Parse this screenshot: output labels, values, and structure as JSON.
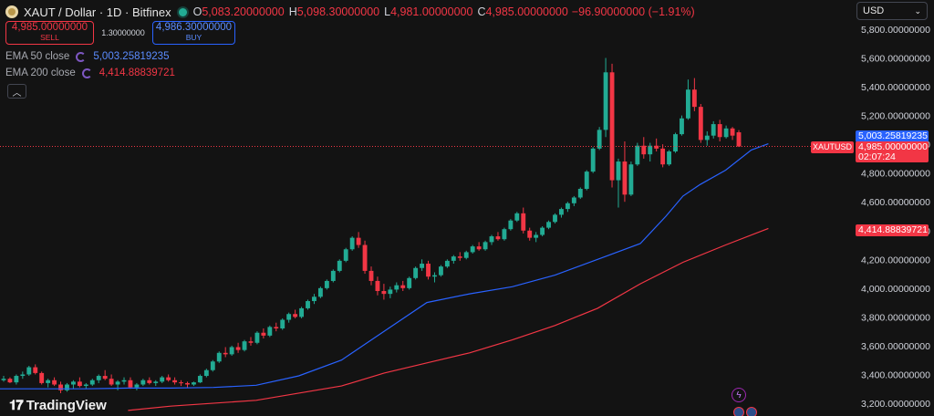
{
  "header": {
    "symbol_title": "XAUT / Dollar · 1D · Bitfinex",
    "ohlc": [
      {
        "k": "O",
        "v": "5,083.20000000"
      },
      {
        "k": "H",
        "v": "5,098.30000000"
      },
      {
        "k": "L",
        "v": "4,981.00000000"
      },
      {
        "k": "C",
        "v": "4,985.00000000"
      }
    ],
    "change": "−96.90000000 (−1.91%)"
  },
  "trade": {
    "sell_price": "4,985.00000000",
    "sell_label": "SELL",
    "spread": "1.30000000",
    "buy_price": "4,986.30000000",
    "buy_label": "BUY"
  },
  "indicators": {
    "ema50": {
      "name": "EMA 50 close",
      "value": "5,003.25819235",
      "color": "#2962ff"
    },
    "ema200": {
      "name": "EMA 200 close",
      "value": "4,414.88839721",
      "color": "#f23645"
    }
  },
  "currency": "USD",
  "price_tags": {
    "ema50": "5,003.25819235",
    "last": "4,985.00000000",
    "countdown": "02:07:24",
    "ema200": "4,414.88839721",
    "symbol": "XAUTUSD"
  },
  "branding": {
    "name": "TradingView"
  },
  "icons": {
    "bolt": "lightning-icon",
    "flags": "us-flag-icon"
  },
  "chart_data": {
    "type": "candlestick",
    "y_axis": {
      "ticks": [
        "3,200.00000000",
        "3,400.00000000",
        "3,600.00000000",
        "3,800.00000000",
        "4,000.00000000",
        "4,200.00000000",
        "4,400.00000000",
        "4,600.00000000",
        "4,800.00000000",
        "5,000.00000000",
        "5,200.00000000",
        "5,400.00000000",
        "5,600.00000000",
        "5,800.00000000"
      ],
      "ylim": [
        3150,
        5900
      ]
    },
    "grid": false,
    "last_price": 4985,
    "colors": {
      "up": "#22ab94",
      "down": "#f23645",
      "ema50": "#2962ff",
      "ema200": "#f23645"
    },
    "series": [
      {
        "name": "EMA 50 close",
        "values": [
          [
            0,
            3300
          ],
          [
            0.05,
            3300
          ],
          [
            0.1,
            3300
          ],
          [
            0.15,
            3305
          ],
          [
            0.2,
            3305
          ],
          [
            0.25,
            3310
          ],
          [
            0.3,
            3325
          ],
          [
            0.35,
            3390
          ],
          [
            0.4,
            3500
          ],
          [
            0.45,
            3700
          ],
          [
            0.5,
            3900
          ],
          [
            0.55,
            3960
          ],
          [
            0.6,
            4010
          ],
          [
            0.65,
            4090
          ],
          [
            0.7,
            4200
          ],
          [
            0.75,
            4310
          ],
          [
            0.78,
            4500
          ],
          [
            0.8,
            4640
          ],
          [
            0.82,
            4720
          ],
          [
            0.85,
            4820
          ],
          [
            0.88,
            4960
          ],
          [
            0.9,
            5003.26
          ]
        ]
      },
      {
        "name": "EMA 200 close",
        "values": [
          [
            0.15,
            3150
          ],
          [
            0.2,
            3180
          ],
          [
            0.3,
            3220
          ],
          [
            0.4,
            3320
          ],
          [
            0.45,
            3410
          ],
          [
            0.5,
            3480
          ],
          [
            0.55,
            3550
          ],
          [
            0.6,
            3640
          ],
          [
            0.65,
            3740
          ],
          [
            0.7,
            3860
          ],
          [
            0.75,
            4030
          ],
          [
            0.8,
            4180
          ],
          [
            0.85,
            4300
          ],
          [
            0.9,
            4414.89
          ]
        ]
      }
    ],
    "candles": [
      [
        3360,
        3390,
        3350,
        3370
      ],
      [
        3370,
        3380,
        3340,
        3345
      ],
      [
        3345,
        3400,
        3330,
        3390
      ],
      [
        3390,
        3420,
        3370,
        3400
      ],
      [
        3400,
        3460,
        3390,
        3450
      ],
      [
        3450,
        3470,
        3400,
        3410
      ],
      [
        3410,
        3420,
        3330,
        3340
      ],
      [
        3340,
        3370,
        3310,
        3360
      ],
      [
        3360,
        3380,
        3320,
        3330
      ],
      [
        3330,
        3350,
        3270,
        3290
      ],
      [
        3290,
        3340,
        3280,
        3330
      ],
      [
        3330,
        3360,
        3300,
        3350
      ],
      [
        3350,
        3380,
        3310,
        3320
      ],
      [
        3320,
        3340,
        3300,
        3330
      ],
      [
        3330,
        3370,
        3320,
        3360
      ],
      [
        3360,
        3400,
        3340,
        3390
      ],
      [
        3390,
        3430,
        3360,
        3370
      ],
      [
        3370,
        3400,
        3320,
        3330
      ],
      [
        3330,
        3360,
        3290,
        3350
      ],
      [
        3350,
        3380,
        3330,
        3360
      ],
      [
        3360,
        3380,
        3300,
        3310
      ],
      [
        3310,
        3340,
        3290,
        3330
      ],
      [
        3330,
        3370,
        3320,
        3360
      ],
      [
        3360,
        3380,
        3330,
        3340
      ],
      [
        3340,
        3360,
        3320,
        3350
      ],
      [
        3350,
        3390,
        3340,
        3380
      ],
      [
        3380,
        3400,
        3350,
        3360
      ],
      [
        3360,
        3380,
        3330,
        3345
      ],
      [
        3345,
        3360,
        3320,
        3340
      ],
      [
        3340,
        3350,
        3310,
        3330
      ],
      [
        3330,
        3350,
        3320,
        3345
      ],
      [
        3345,
        3400,
        3340,
        3390
      ],
      [
        3390,
        3440,
        3380,
        3430
      ],
      [
        3430,
        3500,
        3420,
        3490
      ],
      [
        3490,
        3560,
        3480,
        3550
      ],
      [
        3550,
        3590,
        3520,
        3540
      ],
      [
        3540,
        3600,
        3530,
        3590
      ],
      [
        3590,
        3620,
        3550,
        3570
      ],
      [
        3570,
        3640,
        3560,
        3630
      ],
      [
        3630,
        3660,
        3600,
        3620
      ],
      [
        3620,
        3700,
        3610,
        3690
      ],
      [
        3690,
        3720,
        3650,
        3670
      ],
      [
        3670,
        3740,
        3660,
        3730
      ],
      [
        3730,
        3760,
        3700,
        3720
      ],
      [
        3720,
        3790,
        3710,
        3780
      ],
      [
        3780,
        3830,
        3760,
        3820
      ],
      [
        3820,
        3850,
        3790,
        3800
      ],
      [
        3800,
        3870,
        3790,
        3860
      ],
      [
        3860,
        3920,
        3850,
        3910
      ],
      [
        3910,
        3960,
        3890,
        3940
      ],
      [
        3940,
        4010,
        3930,
        4000
      ],
      [
        4000,
        4060,
        3990,
        4050
      ],
      [
        4050,
        4130,
        4040,
        4120
      ],
      [
        4120,
        4200,
        4110,
        4190
      ],
      [
        4190,
        4280,
        4180,
        4270
      ],
      [
        4270,
        4360,
        4260,
        4350
      ],
      [
        4350,
        4390,
        4280,
        4300
      ],
      [
        4300,
        4330,
        4100,
        4120
      ],
      [
        4120,
        4150,
        4020,
        4050
      ],
      [
        4050,
        4080,
        3950,
        3980
      ],
      [
        3980,
        4030,
        3920,
        3960
      ],
      [
        3960,
        4010,
        3930,
        3990
      ],
      [
        3990,
        4040,
        3970,
        4020
      ],
      [
        4020,
        4050,
        3980,
        4000
      ],
      [
        4000,
        4080,
        3990,
        4070
      ],
      [
        4070,
        4150,
        4060,
        4140
      ],
      [
        4140,
        4200,
        4120,
        4170
      ],
      [
        4170,
        4190,
        4060,
        4080
      ],
      [
        4080,
        4110,
        4040,
        4090
      ],
      [
        4090,
        4160,
        4080,
        4150
      ],
      [
        4150,
        4200,
        4140,
        4190
      ],
      [
        4190,
        4230,
        4170,
        4220
      ],
      [
        4220,
        4250,
        4190,
        4210
      ],
      [
        4210,
        4260,
        4200,
        4250
      ],
      [
        4250,
        4300,
        4240,
        4290
      ],
      [
        4290,
        4320,
        4260,
        4270
      ],
      [
        4270,
        4330,
        4260,
        4320
      ],
      [
        4320,
        4370,
        4300,
        4360
      ],
      [
        4360,
        4390,
        4330,
        4340
      ],
      [
        4340,
        4420,
        4330,
        4410
      ],
      [
        4410,
        4480,
        4400,
        4470
      ],
      [
        4470,
        4530,
        4460,
        4520
      ],
      [
        4520,
        4560,
        4380,
        4400
      ],
      [
        4400,
        4420,
        4330,
        4350
      ],
      [
        4350,
        4390,
        4320,
        4370
      ],
      [
        4370,
        4430,
        4360,
        4420
      ],
      [
        4420,
        4470,
        4410,
        4460
      ],
      [
        4460,
        4520,
        4450,
        4510
      ],
      [
        4510,
        4560,
        4490,
        4550
      ],
      [
        4550,
        4600,
        4530,
        4590
      ],
      [
        4590,
        4640,
        4570,
        4630
      ],
      [
        4630,
        4700,
        4620,
        4690
      ],
      [
        4690,
        4820,
        4680,
        4810
      ],
      [
        4810,
        4980,
        4800,
        4970
      ],
      [
        4970,
        5120,
        4960,
        5100
      ],
      [
        5100,
        5600,
        5050,
        5500
      ],
      [
        5500,
        5560,
        4700,
        4750
      ],
      [
        4750,
        4900,
        4560,
        4880
      ],
      [
        4880,
        5020,
        4600,
        4650
      ],
      [
        4650,
        4880,
        4640,
        4860
      ],
      [
        4860,
        5010,
        4850,
        4990
      ],
      [
        4990,
        5050,
        4900,
        4930
      ],
      [
        4930,
        5010,
        4880,
        4990
      ],
      [
        4990,
        5040,
        4950,
        4970
      ],
      [
        4970,
        5000,
        4840,
        4860
      ],
      [
        4860,
        4960,
        4850,
        4950
      ],
      [
        4950,
        5080,
        4940,
        5070
      ],
      [
        5070,
        5200,
        5060,
        5180
      ],
      [
        5180,
        5450,
        5170,
        5380
      ],
      [
        5380,
        5460,
        5230,
        5260
      ],
      [
        5260,
        5280,
        5010,
        5030
      ],
      [
        5030,
        5090,
        4990,
        5060
      ],
      [
        5060,
        5160,
        5040,
        5140
      ],
      [
        5140,
        5170,
        5020,
        5050
      ],
      [
        5050,
        5130,
        5040,
        5110
      ],
      [
        5110,
        5120,
        5030,
        5060
      ],
      [
        5083.2,
        5098.3,
        4981,
        4985
      ]
    ]
  }
}
